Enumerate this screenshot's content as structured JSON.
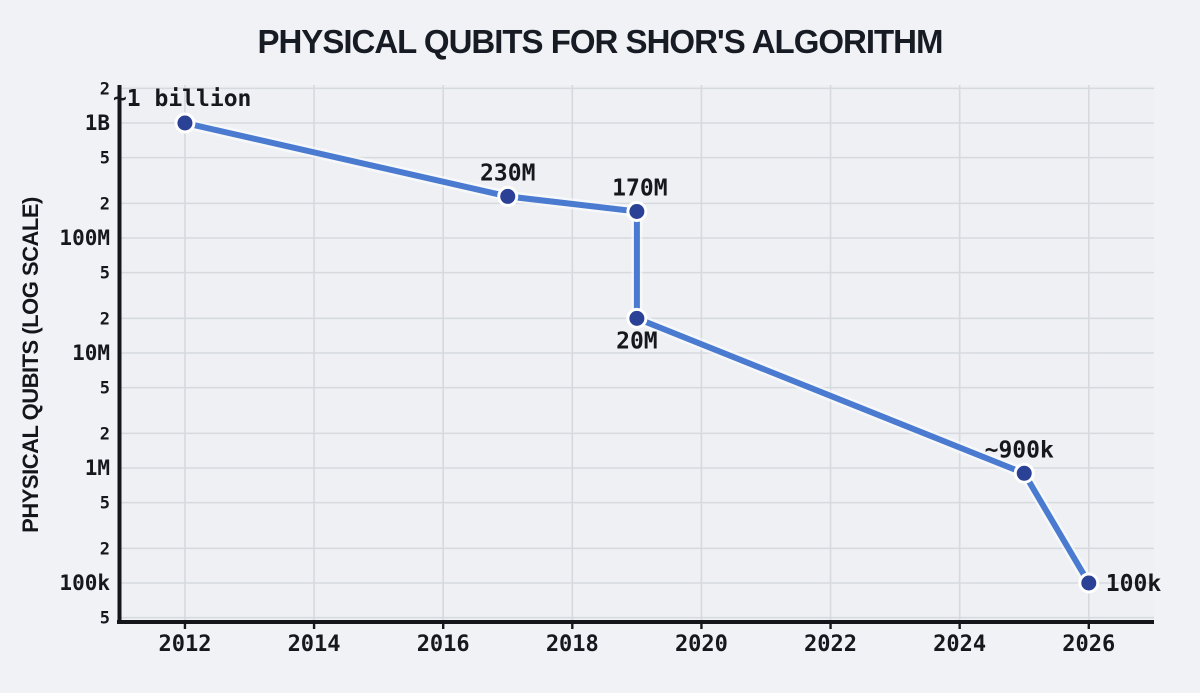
{
  "colors": {
    "background": "#f1f2f5",
    "plot_background": "#eef0f3",
    "grid": "#d6d9de",
    "axis": "#14161c",
    "text": "#16181d",
    "line": "#4a7bd0",
    "line_glow": "#ffffff",
    "marker": "#2a4195",
    "marker_halo": "#ffffff"
  },
  "chart_data": {
    "type": "line",
    "title": "PHYSICAL QUBITS FOR SHOR'S ALGORITHM",
    "xlabel": "",
    "ylabel": "PHYSICAL QUBITS (LOG SCALE)",
    "y_scale": "log",
    "grid": true,
    "legend": false,
    "xlim": [
      2010.963,
      2027.01
    ],
    "ylim": [
      45800,
      2140000000
    ],
    "x_ticks": [
      2012,
      2014,
      2016,
      2018,
      2020,
      2022,
      2024,
      2026
    ],
    "y_ticks": [
      {
        "value": 2000000000,
        "label": "2",
        "major": false
      },
      {
        "value": 1000000000,
        "label": "1B",
        "major": true
      },
      {
        "value": 500000000,
        "label": "5",
        "major": false
      },
      {
        "value": 200000000,
        "label": "2",
        "major": false
      },
      {
        "value": 100000000,
        "label": "100M",
        "major": true
      },
      {
        "value": 50000000,
        "label": "5",
        "major": false
      },
      {
        "value": 20000000,
        "label": "2",
        "major": false
      },
      {
        "value": 10000000,
        "label": "10M",
        "major": true
      },
      {
        "value": 5000000,
        "label": "5",
        "major": false
      },
      {
        "value": 2000000,
        "label": "2",
        "major": false
      },
      {
        "value": 1000000,
        "label": "1M",
        "major": true
      },
      {
        "value": 500000,
        "label": "5",
        "major": false
      },
      {
        "value": 200000,
        "label": "2",
        "major": false
      },
      {
        "value": 100000,
        "label": "100k",
        "major": true
      },
      {
        "value": 50000,
        "label": "5",
        "major": false
      }
    ],
    "points": [
      {
        "x": 2012,
        "y": 1000000000,
        "label": "~1 billion",
        "label_position": "above-left"
      },
      {
        "x": 2017,
        "y": 230000000,
        "label": "230M",
        "label_position": "above"
      },
      {
        "x": 2019,
        "y": 170000000,
        "label": "170M",
        "label_position": "above",
        "label_dx": 3
      },
      {
        "x": 2019,
        "y": 20000000,
        "label": "20M",
        "label_position": "below"
      },
      {
        "x": 2025,
        "y": 900000,
        "label": "~900k",
        "label_position": "above",
        "label_dx": -5
      },
      {
        "x": 2026,
        "y": 100000,
        "label": "100k",
        "label_position": "right"
      }
    ]
  }
}
